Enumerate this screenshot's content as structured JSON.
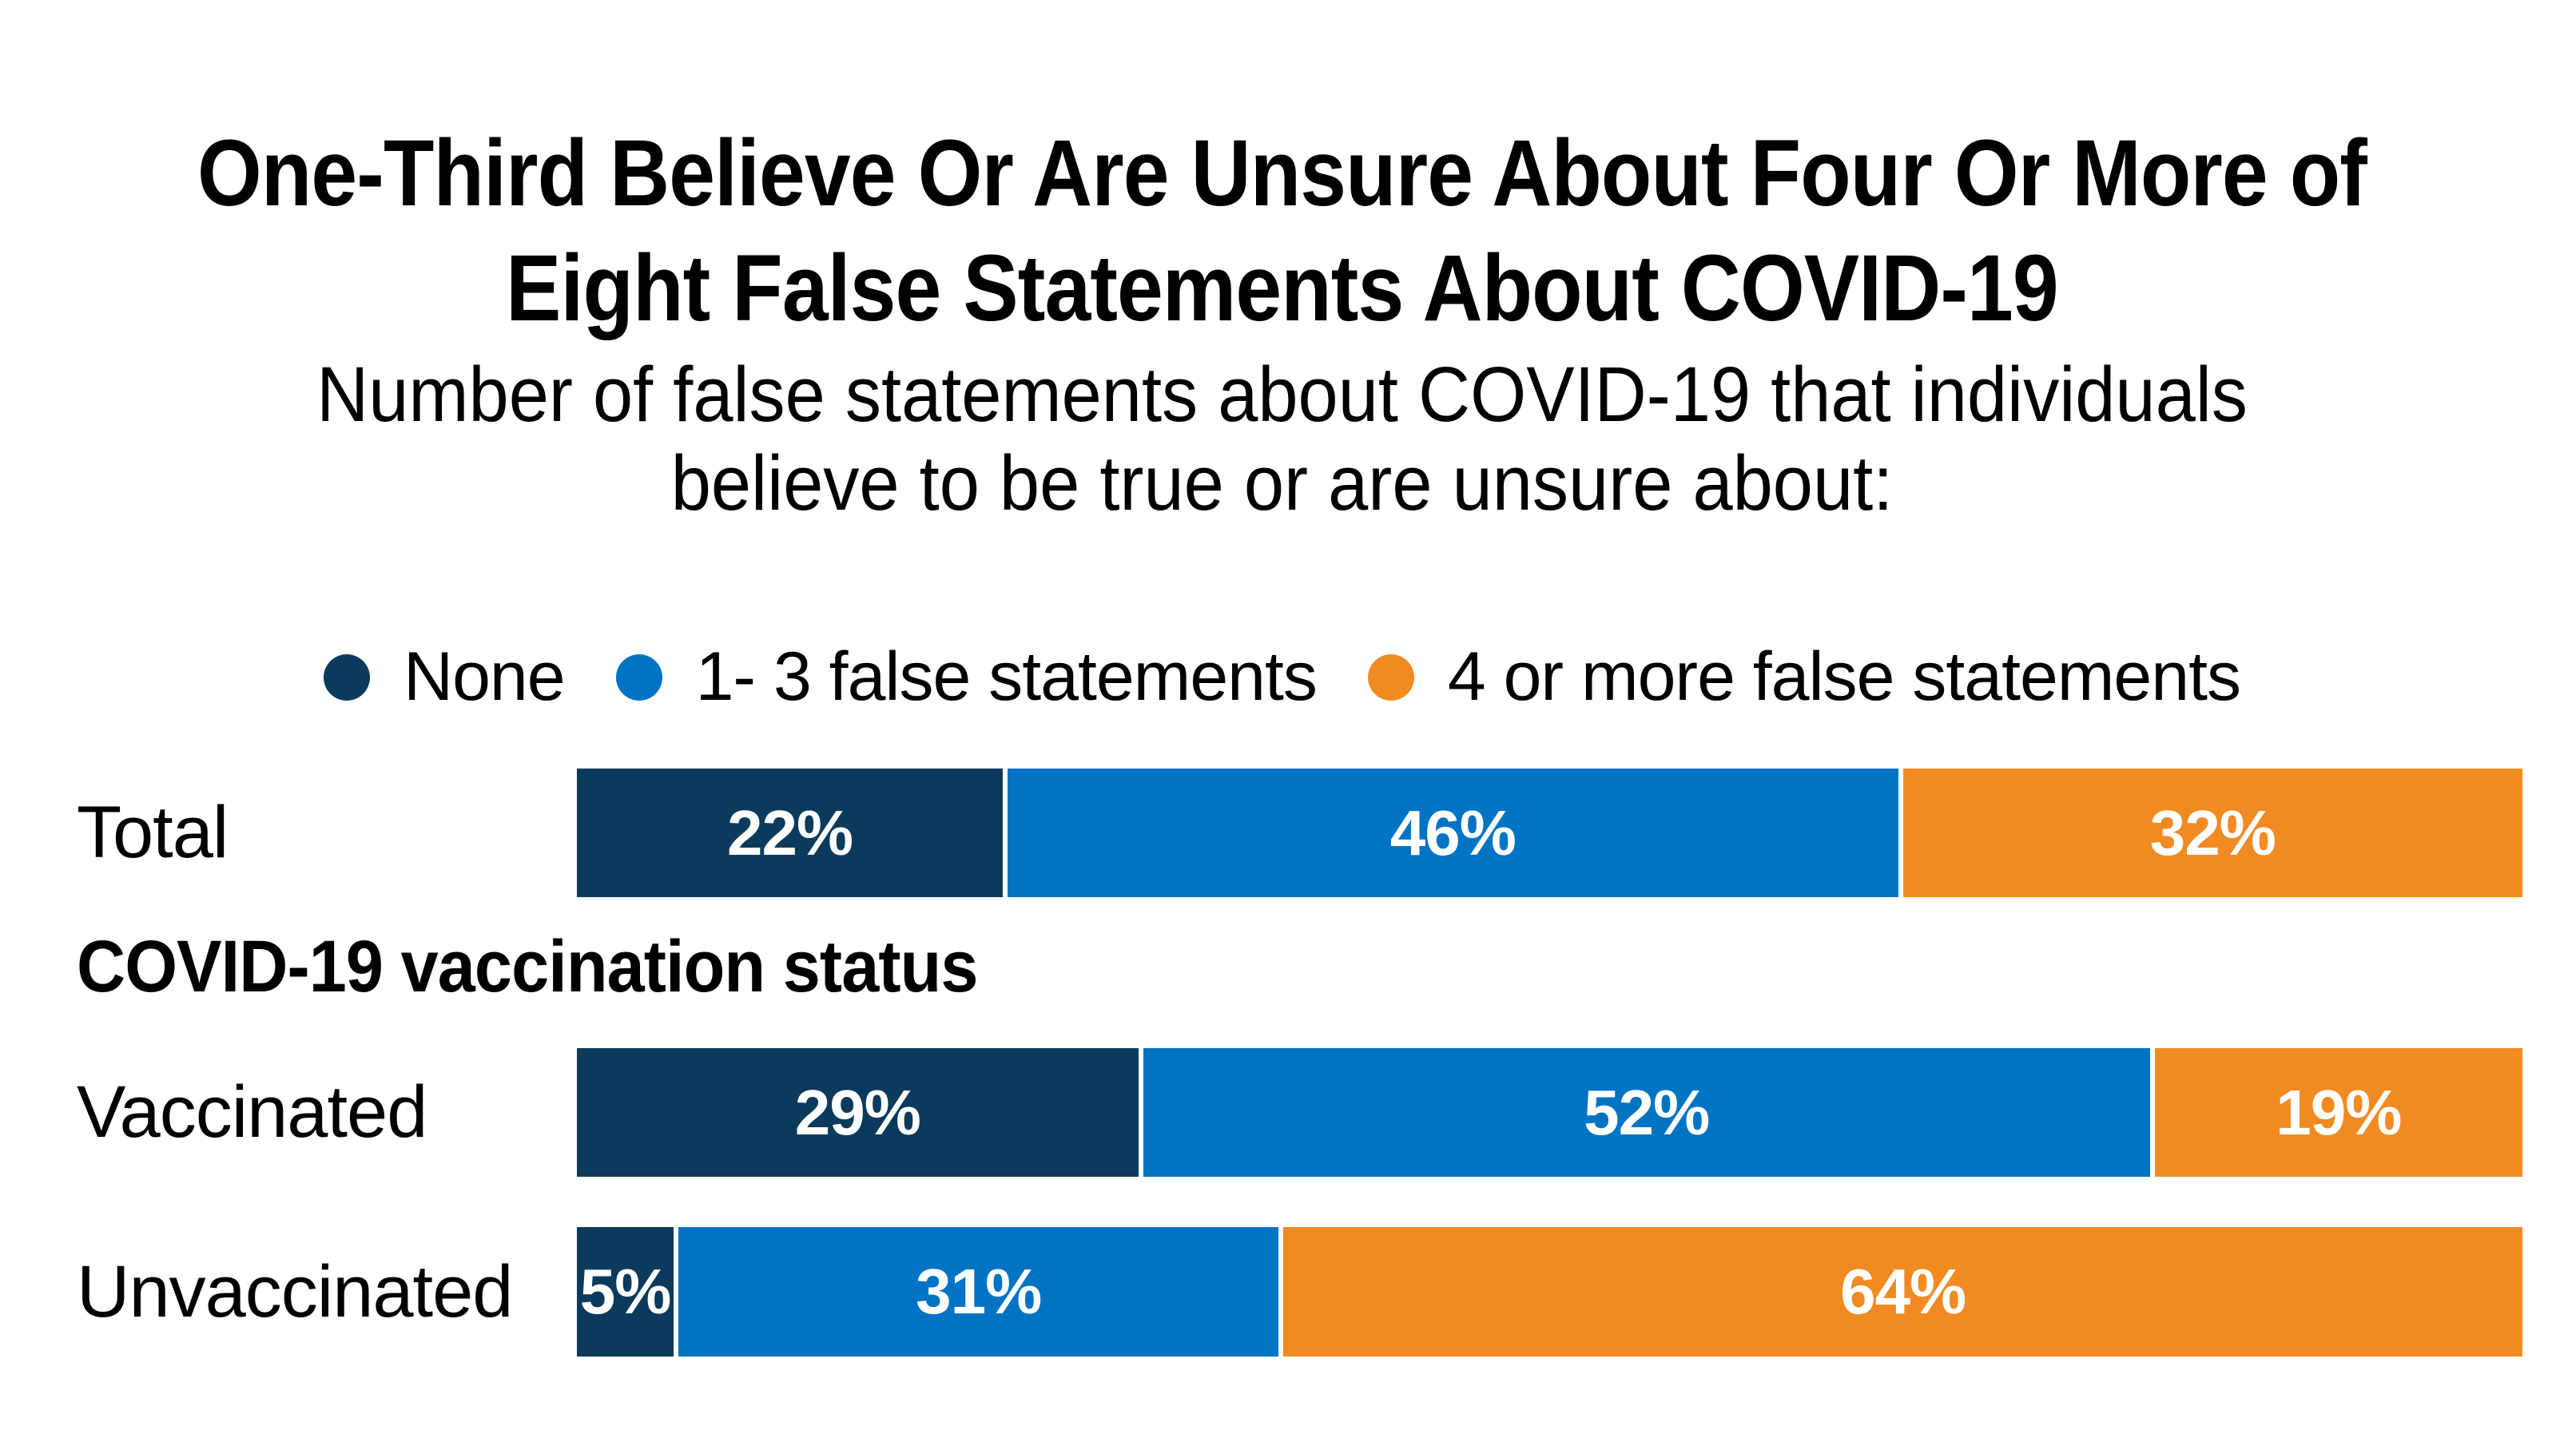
{
  "title": {
    "line1": "One-Third Believe Or Are Unsure About Four Or More of",
    "line2": "Eight False Statements About COVID-19"
  },
  "subtitle": {
    "line1": "Number of false statements about COVID-19 that individuals",
    "line2": "believe to be true or are unsure about:"
  },
  "legend": {
    "items": [
      {
        "label": "None",
        "color": "#0B3A5D"
      },
      {
        "label": "1- 3 false statements",
        "color": "#0074C4"
      },
      {
        "label": "4 or more false statements",
        "color": "#F28A22"
      }
    ]
  },
  "colors": {
    "navy": "#0B3A5D",
    "blue": "#0074C4",
    "orange": "#F28A22",
    "background": "#FFFFFF",
    "text": "#000000",
    "value_label": "#FFFFFF"
  },
  "chart_data": {
    "type": "bar",
    "variant": "horizontal-stacked-100",
    "title": "One-Third Believe Or Are Unsure About Four Or More of Eight False Statements About COVID-19",
    "subtitle": "Number of false statements about COVID-19 that individuals believe to be true or are unsure about:",
    "categories": [
      "Total",
      "Vaccinated",
      "Unvaccinated"
    ],
    "series": [
      {
        "name": "None",
        "color": "#0B3A5D",
        "values": [
          22,
          29,
          5
        ]
      },
      {
        "name": "1- 3 false statements",
        "color": "#0074C4",
        "values": [
          46,
          52,
          31
        ]
      },
      {
        "name": "4 or more false statements",
        "color": "#F28A22",
        "values": [
          32,
          19,
          64
        ]
      }
    ],
    "value_suffix": "%",
    "xlim": [
      0,
      100
    ],
    "grid": false,
    "legend_position": "top",
    "value_labels": "inside-center-white",
    "section_header": {
      "text": "COVID-19 vaccination status",
      "after_category": "Total"
    }
  }
}
